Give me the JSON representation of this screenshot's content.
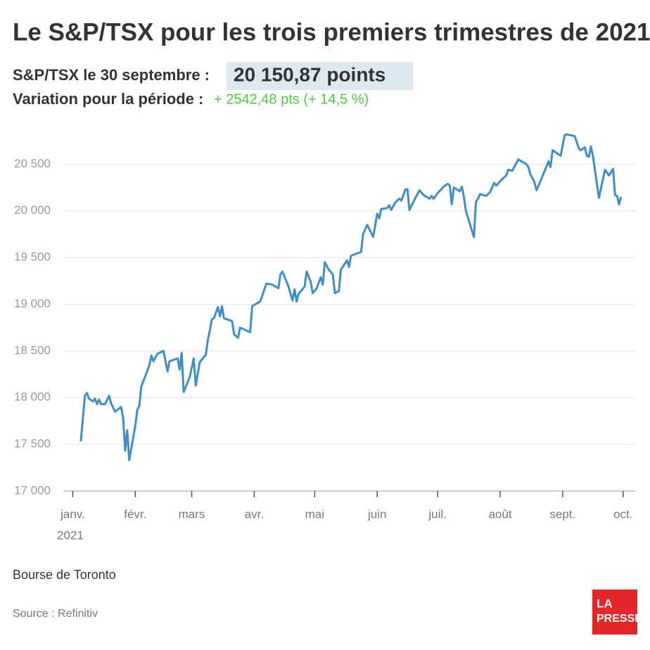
{
  "chart_data": {
    "type": "line",
    "title": "Le S&P/TSX pour les trois premiers trimestres de 2021",
    "subtitle_label": "S&P/TSX le 30 septembre :",
    "subtitle_value": "20 150,87 points",
    "change_label": "Variation pour la période :",
    "change_value": "+ 2542,48 pts (+ 14,5 %)",
    "x_year": "2021",
    "caption": "Bourse de Toronto",
    "source": "Source : Refinitiv",
    "logo": [
      "LA",
      "PRESSE"
    ],
    "grid": true,
    "xlim": [
      -4,
      279
    ],
    "xticks": [
      {
        "value": 0,
        "label": "janv."
      },
      {
        "value": 31,
        "label": "févr."
      },
      {
        "value": 59,
        "label": "mars"
      },
      {
        "value": 90,
        "label": "avr."
      },
      {
        "value": 120,
        "label": "mai"
      },
      {
        "value": 151,
        "label": "juin"
      },
      {
        "value": 181,
        "label": "juil."
      },
      {
        "value": 212,
        "label": "août"
      },
      {
        "value": 243,
        "label": "sept."
      },
      {
        "value": 273,
        "label": "oct."
      }
    ],
    "ylim": [
      17000,
      21000
    ],
    "yticks": [
      {
        "value": 17000,
        "label": "17 000"
      },
      {
        "value": 17500,
        "label": "17 500"
      },
      {
        "value": 18000,
        "label": "18 000"
      },
      {
        "value": 18500,
        "label": "18 500"
      },
      {
        "value": 19000,
        "label": "19 000"
      },
      {
        "value": 19500,
        "label": "19 500"
      },
      {
        "value": 20000,
        "label": "20 000"
      },
      {
        "value": 20500,
        "label": "20 500"
      }
    ],
    "series": [
      {
        "name": "S&P/TSX",
        "color": "#3d8fc4",
        "x": [
          4,
          6,
          7,
          8,
          10,
          11,
          12,
          13,
          14,
          16,
          18,
          19,
          21,
          24,
          25,
          26,
          27,
          28,
          31,
          32,
          33,
          34,
          36,
          38,
          39,
          40,
          42,
          45,
          47,
          48,
          52,
          53,
          54,
          55,
          58,
          60,
          61,
          63,
          66,
          67,
          68,
          69,
          70,
          72,
          73,
          74,
          75,
          79,
          80,
          82,
          83,
          88,
          89,
          93,
          96,
          99,
          102,
          103,
          104,
          107,
          109,
          110,
          111,
          112,
          115,
          116,
          118,
          119,
          121,
          123,
          124,
          125,
          127,
          129,
          130,
          132,
          133,
          136,
          137,
          138,
          143,
          144,
          146,
          147,
          149,
          151,
          152,
          153,
          156,
          157,
          158,
          160,
          162,
          163,
          165,
          166,
          167,
          170,
          172,
          174,
          177,
          178,
          179,
          181,
          184,
          186,
          187,
          188,
          189,
          192,
          193,
          194,
          195,
          199,
          200,
          201,
          202,
          205,
          207,
          209,
          210,
          213,
          215,
          216,
          218,
          219,
          221,
          225,
          226,
          227,
          229,
          230,
          232,
          236,
          237,
          238,
          242,
          244,
          245,
          249,
          251,
          252,
          254,
          255,
          256,
          257,
          258,
          261,
          264,
          266,
          268,
          269,
          270,
          271,
          272
        ],
        "values": [
          17530,
          18020,
          18050,
          17990,
          17960,
          17990,
          17930,
          17980,
          17930,
          17930,
          18020,
          17940,
          17850,
          17900,
          17780,
          17430,
          17650,
          17330,
          17700,
          17870,
          17910,
          18120,
          18230,
          18350,
          18450,
          18390,
          18470,
          18500,
          18280,
          18390,
          18420,
          18300,
          18480,
          18060,
          18220,
          18420,
          18130,
          18380,
          18460,
          18620,
          18720,
          18840,
          18850,
          18970,
          18870,
          18980,
          18850,
          18820,
          18680,
          18640,
          18750,
          18700,
          18980,
          19030,
          19220,
          19210,
          19170,
          19320,
          19350,
          19190,
          19040,
          19160,
          19030,
          19110,
          19190,
          19350,
          19240,
          19120,
          19170,
          19290,
          19210,
          19450,
          19370,
          19320,
          19120,
          19140,
          19370,
          19470,
          19400,
          19520,
          19560,
          19750,
          19850,
          19810,
          19720,
          19970,
          19920,
          20020,
          20030,
          20060,
          20010,
          20090,
          20130,
          20110,
          20230,
          20230,
          20010,
          20140,
          20220,
          20170,
          20130,
          20160,
          20130,
          20190,
          20260,
          20290,
          20270,
          20070,
          20250,
          20210,
          20260,
          20150,
          20000,
          19720,
          20100,
          20130,
          20180,
          20160,
          20200,
          20300,
          20270,
          20340,
          20380,
          20440,
          20430,
          20470,
          20550,
          20500,
          20470,
          20390,
          20310,
          20220,
          20320,
          20530,
          20470,
          20650,
          20590,
          20810,
          20820,
          20800,
          20670,
          20650,
          20680,
          20590,
          20580,
          20690,
          20590,
          20140,
          20440,
          20380,
          20450,
          20170,
          20160,
          20070,
          20150
        ]
      }
    ]
  }
}
